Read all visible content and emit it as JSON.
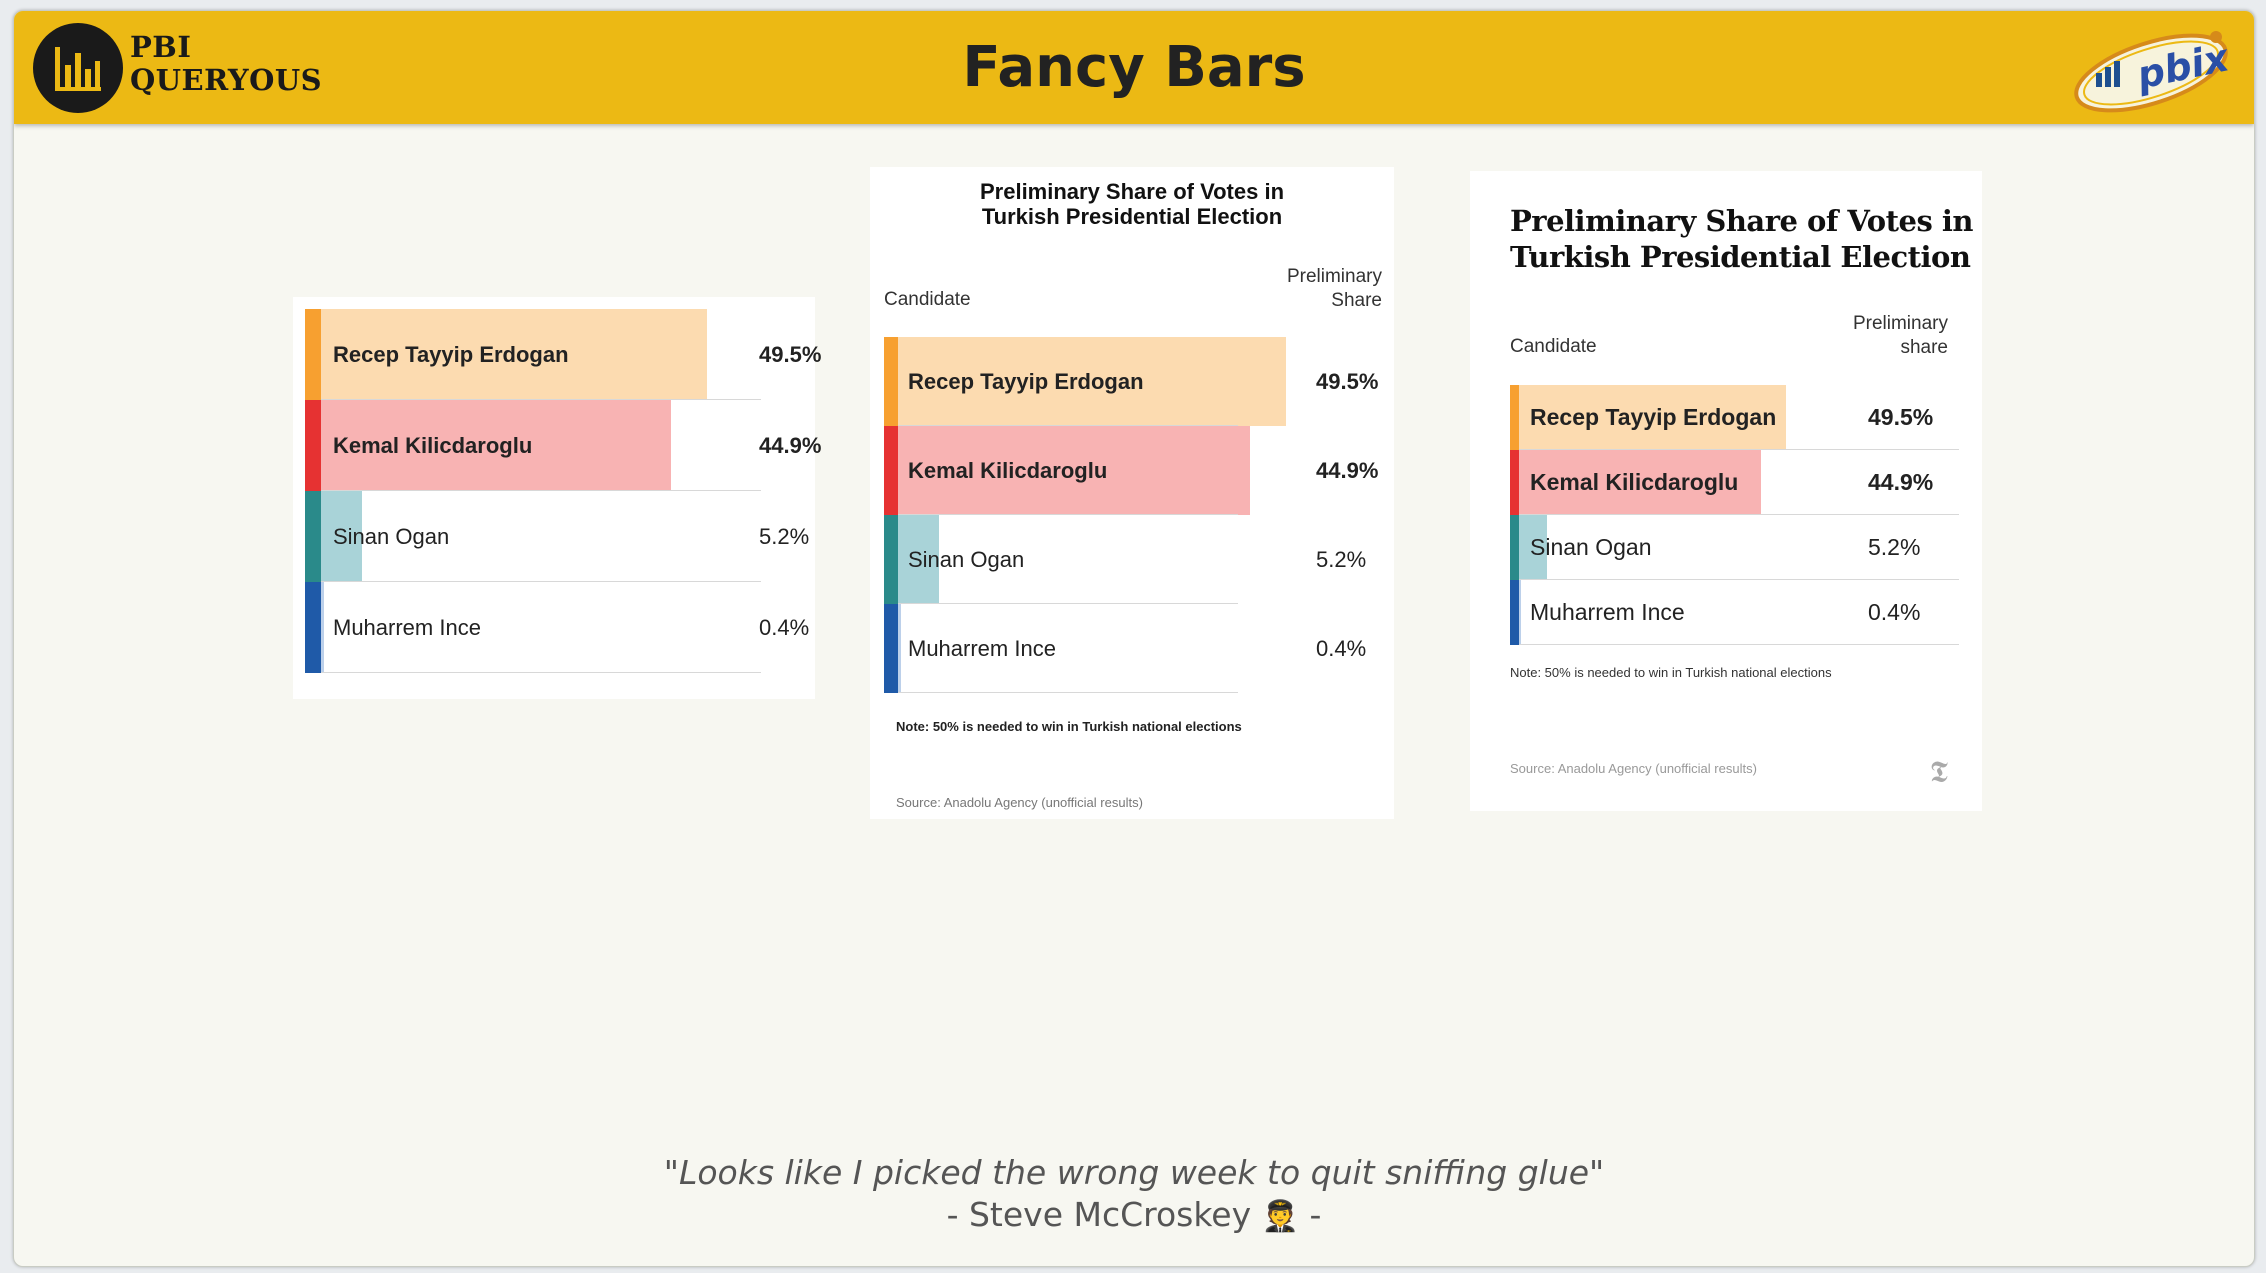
{
  "header": {
    "logo_line1": "PBI",
    "logo_line2": "QUERYOUS",
    "title": "Fancy Bars",
    "badge": "pbix"
  },
  "colors": {
    "header_bg": "#ecb914",
    "erdogan_accent": "#f7a030",
    "erdogan_fill": "#fcdbb0",
    "kilicdaroglu_accent": "#e63232",
    "kilicdaroglu_fill": "#f8b3b3",
    "ogan_accent": "#2a8a8a",
    "ogan_fill": "#a9d3d8",
    "ince_accent": "#1f5aa8",
    "ince_fill": "#bcd0ea"
  },
  "candidates": [
    {
      "name": "Recep Tayyip Erdogan",
      "value": "49.5%",
      "share": 49.5,
      "bold": true
    },
    {
      "name": "Kemal Kilicdaroglu",
      "value": "44.9%",
      "share": 44.9,
      "bold": true
    },
    {
      "name": "Sinan Ogan",
      "value": "5.2%",
      "share": 5.2,
      "bold": false
    },
    {
      "name": "Muharrem Ince",
      "value": "0.4%",
      "share": 0.4,
      "bold": false
    }
  ],
  "card2": {
    "title_line1": "Preliminary Share of Votes in",
    "title_line2": "Turkish Presidential Election",
    "col_candidate": "Candidate",
    "col_share_line1": "Preliminary",
    "col_share_line2": "Share",
    "note": "Note: 50% is needed to win in Turkish national elections",
    "source": "Source: Anadolu Agency (unofficial results)"
  },
  "card3": {
    "title_line1": "Preliminary Share of Votes in",
    "title_line2": "Turkish Presidential Election",
    "col_candidate": "Candidate",
    "col_share_line1": "Preliminary",
    "col_share_line2": "share",
    "note": "Note: 50% is needed to win in Turkish national elections",
    "source": "Source: Anadolu Agency (unofficial results)",
    "brand_glyph": "𝕿"
  },
  "footer": {
    "quote": "\"Looks like I picked the wrong week to quit sniffing glue\"",
    "author": "- Steve McCroskey",
    "author_end": "-",
    "emoji": "🧑‍✈️"
  }
}
